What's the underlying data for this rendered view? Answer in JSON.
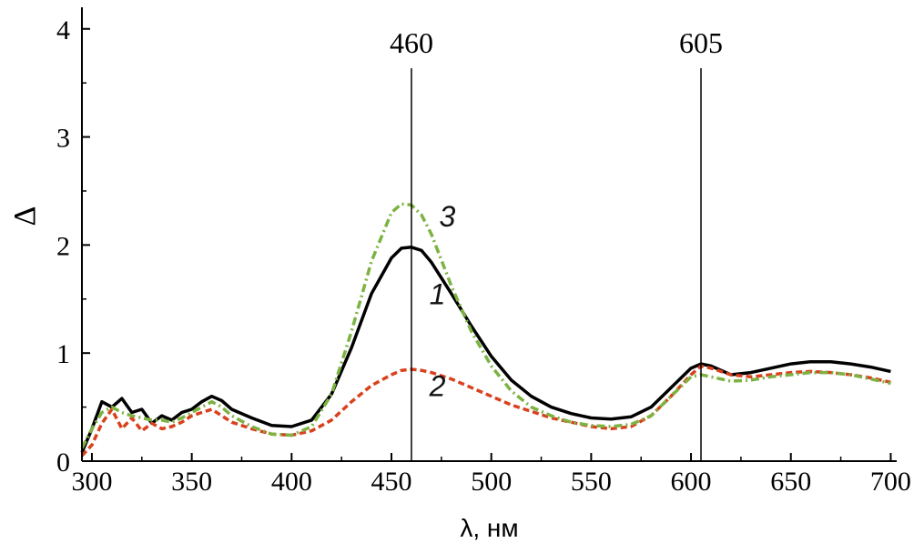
{
  "chart_data": {
    "type": "line",
    "title": "",
    "xlabel": "λ, нм",
    "ylabel": "Δ",
    "xlim": [
      295,
      703
    ],
    "ylim": [
      0,
      4.2
    ],
    "xticks": [
      300,
      350,
      400,
      450,
      500,
      550,
      600,
      650,
      700
    ],
    "yticks": [
      0,
      1,
      2,
      3,
      4
    ],
    "grid": false,
    "legend": "none",
    "vlines": [
      {
        "x": 460,
        "label": "460"
      },
      {
        "x": 605,
        "label": "605"
      }
    ],
    "series": [
      {
        "name": "1",
        "label_pos": [
          473,
          1.45
        ],
        "color": "#000000",
        "style": "solid",
        "x": [
          295,
          300,
          305,
          310,
          315,
          320,
          325,
          330,
          335,
          340,
          345,
          350,
          355,
          360,
          365,
          370,
          380,
          390,
          400,
          410,
          420,
          430,
          440,
          450,
          455,
          460,
          465,
          470,
          480,
          490,
          500,
          510,
          520,
          530,
          540,
          550,
          560,
          570,
          580,
          590,
          600,
          605,
          610,
          620,
          630,
          640,
          650,
          660,
          670,
          680,
          690,
          700
        ],
        "y": [
          0.08,
          0.3,
          0.55,
          0.5,
          0.58,
          0.45,
          0.48,
          0.35,
          0.42,
          0.38,
          0.45,
          0.48,
          0.55,
          0.6,
          0.56,
          0.48,
          0.4,
          0.33,
          0.32,
          0.38,
          0.62,
          1.05,
          1.55,
          1.88,
          1.97,
          1.98,
          1.95,
          1.84,
          1.55,
          1.25,
          0.97,
          0.75,
          0.6,
          0.5,
          0.44,
          0.4,
          0.39,
          0.41,
          0.5,
          0.68,
          0.86,
          0.9,
          0.88,
          0.8,
          0.82,
          0.86,
          0.9,
          0.92,
          0.92,
          0.9,
          0.87,
          0.83
        ]
      },
      {
        "name": "2",
        "label_pos": [
          473,
          0.6
        ],
        "color": "#d9411e",
        "style": "dashed",
        "x": [
          295,
          300,
          305,
          310,
          315,
          320,
          325,
          330,
          335,
          340,
          345,
          350,
          355,
          360,
          365,
          370,
          380,
          390,
          400,
          410,
          420,
          430,
          440,
          450,
          455,
          460,
          465,
          470,
          480,
          490,
          500,
          510,
          520,
          530,
          540,
          550,
          560,
          570,
          580,
          590,
          600,
          605,
          610,
          620,
          630,
          640,
          650,
          660,
          670,
          680,
          690,
          700
        ],
        "y": [
          0.05,
          0.15,
          0.35,
          0.48,
          0.3,
          0.4,
          0.28,
          0.35,
          0.3,
          0.32,
          0.36,
          0.42,
          0.45,
          0.48,
          0.42,
          0.36,
          0.3,
          0.25,
          0.24,
          0.28,
          0.38,
          0.55,
          0.7,
          0.8,
          0.84,
          0.85,
          0.84,
          0.82,
          0.76,
          0.68,
          0.6,
          0.52,
          0.46,
          0.4,
          0.36,
          0.32,
          0.3,
          0.32,
          0.42,
          0.6,
          0.8,
          0.88,
          0.86,
          0.8,
          0.78,
          0.8,
          0.82,
          0.83,
          0.82,
          0.8,
          0.77,
          0.73
        ]
      },
      {
        "name": "3",
        "label_pos": [
          478,
          2.17
        ],
        "color": "#7cb342",
        "style": "dashdot",
        "x": [
          295,
          300,
          305,
          310,
          315,
          320,
          325,
          330,
          335,
          340,
          345,
          350,
          355,
          360,
          365,
          370,
          380,
          390,
          400,
          410,
          420,
          430,
          440,
          450,
          455,
          460,
          465,
          470,
          480,
          490,
          500,
          510,
          520,
          530,
          540,
          550,
          560,
          570,
          580,
          590,
          600,
          605,
          610,
          620,
          630,
          640,
          650,
          660,
          670,
          680,
          690,
          700
        ],
        "y": [
          0.12,
          0.3,
          0.45,
          0.5,
          0.45,
          0.42,
          0.4,
          0.38,
          0.38,
          0.36,
          0.4,
          0.45,
          0.5,
          0.55,
          0.5,
          0.42,
          0.32,
          0.25,
          0.24,
          0.32,
          0.62,
          1.2,
          1.85,
          2.3,
          2.38,
          2.37,
          2.28,
          2.1,
          1.62,
          1.2,
          0.88,
          0.65,
          0.5,
          0.42,
          0.36,
          0.33,
          0.32,
          0.34,
          0.42,
          0.6,
          0.78,
          0.8,
          0.78,
          0.74,
          0.75,
          0.78,
          0.8,
          0.82,
          0.82,
          0.8,
          0.76,
          0.72
        ]
      }
    ]
  }
}
